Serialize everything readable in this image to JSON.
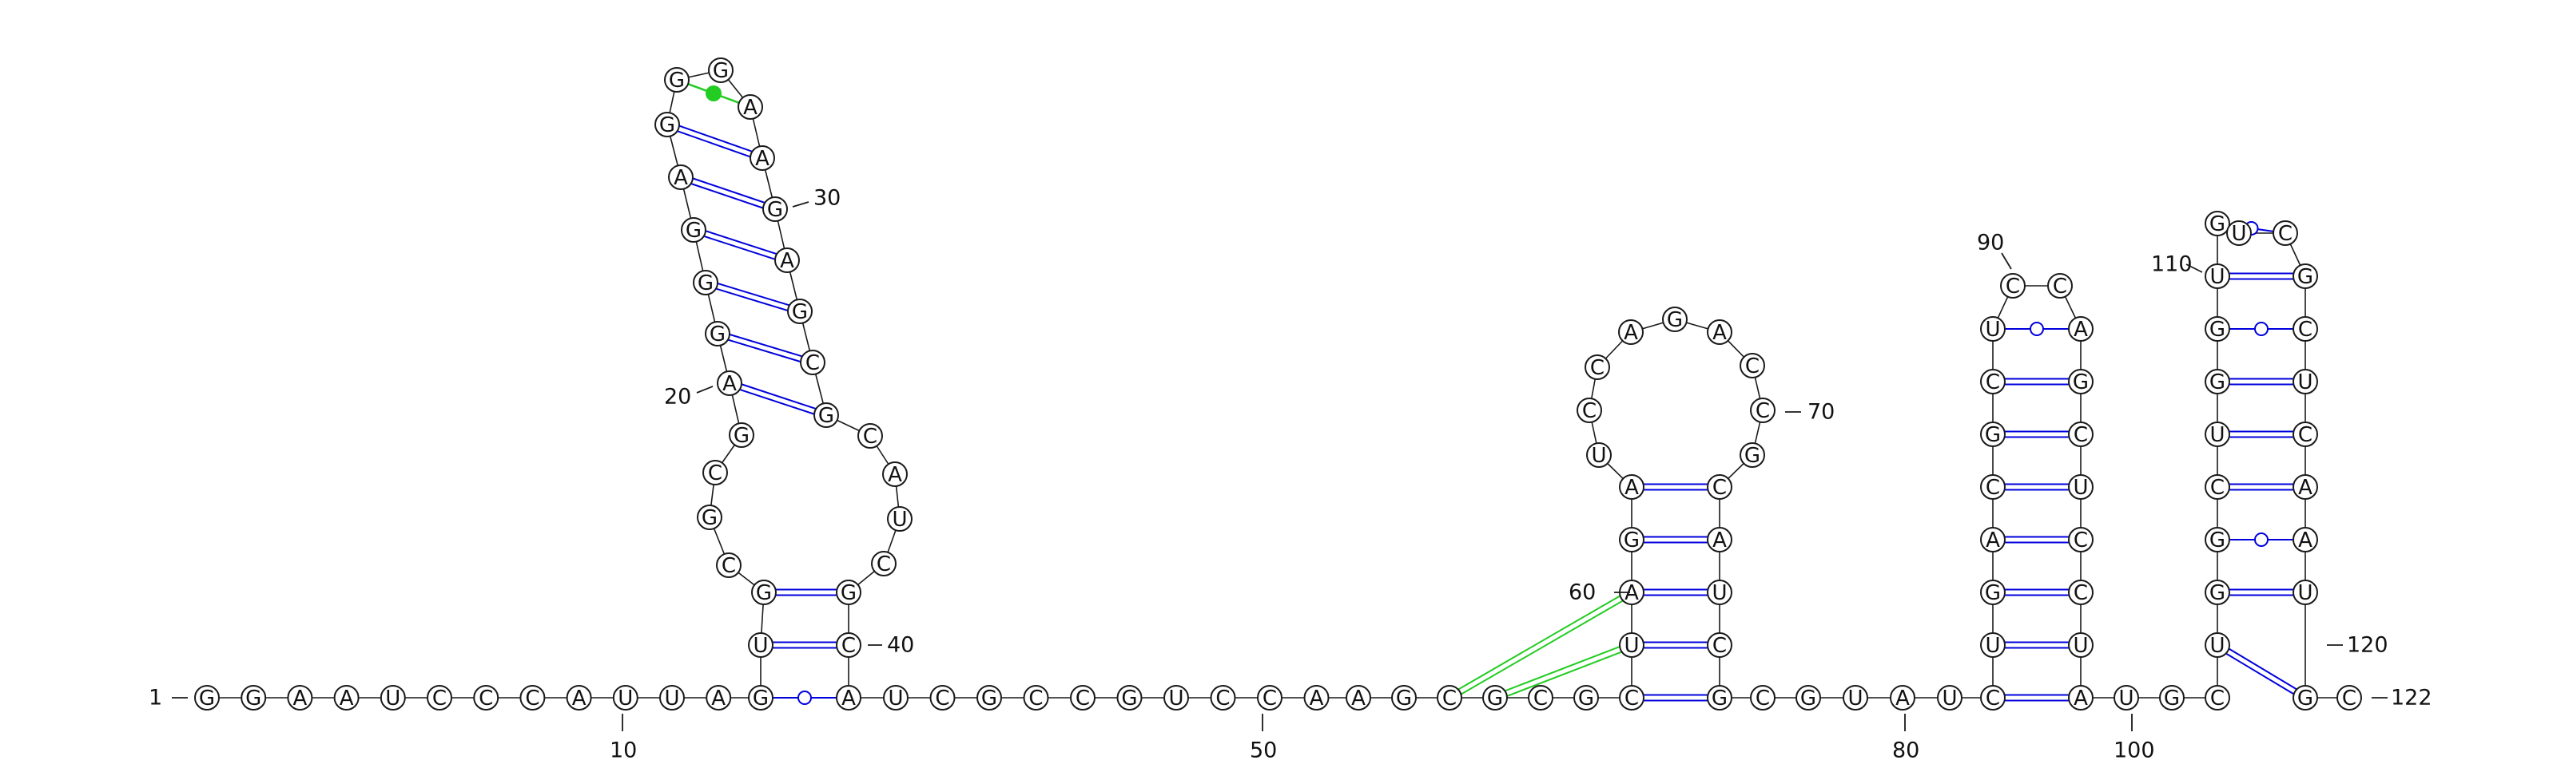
{
  "sequence": "GGAAUCCCAUUAGUGCGCGAGGGAGGGAAGAGCGCAUCGCAUCGCCGUCCAAGCGCGCUAGAUCCAGACCGCAUCGCGUAUCUGACGCUCCAGCUCCUAUGCUGGCUGGUGUCGCUCAAUGC",
  "series_legend": {
    "canonical_color": "#0000dd",
    "gu_wobble_color": "#0000dd",
    "noncanonical_color": "#22cc22",
    "pseudoknot_color": "#22cc22"
  },
  "number_labels": [
    {
      "id": "n1",
      "text": "1"
    },
    {
      "id": "n10",
      "text": "10"
    },
    {
      "id": "n20",
      "text": "20"
    },
    {
      "id": "n30",
      "text": "30"
    },
    {
      "id": "n40",
      "text": "40"
    },
    {
      "id": "n50",
      "text": "50"
    },
    {
      "id": "n60",
      "text": "60"
    },
    {
      "id": "n70",
      "text": "70"
    },
    {
      "id": "n80",
      "text": "80"
    },
    {
      "id": "n90",
      "text": "90"
    },
    {
      "id": "n100",
      "text": "100"
    },
    {
      "id": "n110",
      "text": "110"
    },
    {
      "id": "n120",
      "text": "120"
    },
    {
      "id": "n122",
      "text": "122"
    }
  ]
}
